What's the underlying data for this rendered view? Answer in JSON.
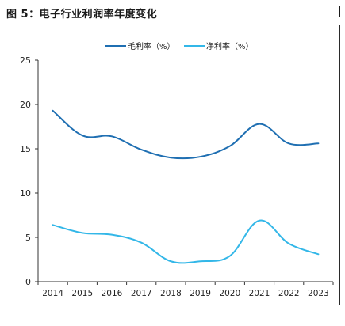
{
  "figure": {
    "title": "图 5：电子行业利润率年度变化"
  },
  "chart_data": {
    "type": "line",
    "title": "",
    "xlabel": "",
    "ylabel": "",
    "categories": [
      "2014",
      "2015",
      "2016",
      "2017",
      "2018",
      "2019",
      "2020",
      "2021",
      "2022",
      "2023"
    ],
    "ylim": [
      0,
      25
    ],
    "yticks": [
      0,
      5,
      10,
      15,
      20,
      25
    ],
    "grid": false,
    "legend_position": "top-center",
    "series": [
      {
        "name": "毛利率（%）",
        "color": "#1f6fb2",
        "values": [
          19.3,
          16.5,
          16.4,
          14.9,
          14.0,
          14.1,
          15.3,
          17.8,
          15.6,
          15.6
        ]
      },
      {
        "name": "净利率（%）",
        "color": "#33b7e8",
        "values": [
          6.4,
          5.5,
          5.3,
          4.4,
          2.3,
          2.3,
          2.9,
          6.9,
          4.3,
          3.1
        ]
      }
    ]
  }
}
